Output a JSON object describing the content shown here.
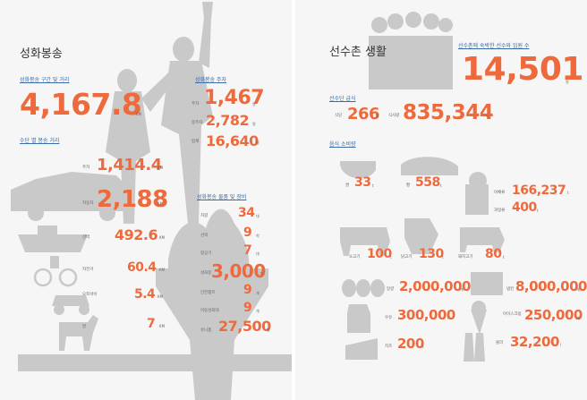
{
  "left": {
    "title": "성화봉송",
    "distance": {
      "heading": "성화봉송 구간 및 거리",
      "value": "4,167.8",
      "unit": "KM"
    },
    "runners": {
      "heading": "성화봉송 주자",
      "rows": [
        {
          "label": "주자",
          "value": "1,467",
          "unit": "명"
        },
        {
          "label": "봉주자",
          "value": "2,782",
          "unit": "명"
        },
        {
          "label": "합계",
          "value": "16,640",
          "unit": "명"
        }
      ]
    },
    "by_means": {
      "heading": "수단 별 봉송 거리",
      "rows": [
        {
          "label": "주자",
          "value": "1,414.4",
          "unit": "KM"
        },
        {
          "label": "자동차",
          "value": "2,188",
          "unit": "KM"
        },
        {
          "label": "선박",
          "value": "492.6",
          "unit": "KM"
        },
        {
          "label": "자전거",
          "value": "60.4",
          "unit": "KM"
        },
        {
          "label": "오토바이",
          "value": "5.4",
          "unit": "KM"
        },
        {
          "label": "말",
          "value": "7",
          "unit": "KM"
        }
      ]
    },
    "equipment": {
      "heading": "성화봉송 물품 및 장비",
      "rows": [
        {
          "label": "차량",
          "value": "34",
          "unit": "대"
        },
        {
          "label": "선박",
          "value": "9",
          "unit": "척"
        },
        {
          "label": "항공기",
          "value": "7",
          "unit": "대"
        },
        {
          "label": "성화봉",
          "value": "3,000",
          "unit": "개"
        },
        {
          "label": "안전램프",
          "value": "9",
          "unit": "개"
        },
        {
          "label": "이동성화대",
          "value": "9",
          "unit": "개"
        },
        {
          "label": "유니폼",
          "value": "27,500",
          "unit": "벌"
        }
      ]
    }
  },
  "right": {
    "title": "선수촌 생활",
    "lodging": {
      "heading": "선수촌에 숙박한 선수와 임원 수",
      "value": "14,501",
      "unit": "명"
    },
    "meals": {
      "heading": "선수단 급식",
      "rows": [
        {
          "label": "식당",
          "value": "266",
          "unit": "종"
        },
        {
          "label": "식사량",
          "value": "835,344",
          "unit": "식"
        }
      ]
    },
    "food": {
      "heading": "음식 소비량",
      "items": [
        {
          "label": "쌀",
          "value": "33",
          "unit": "t"
        },
        {
          "label": "빵",
          "value": "558",
          "unit": "t"
        },
        {
          "label": "야채류",
          "value": "166,237",
          "unit": "t"
        },
        {
          "label": "과일류",
          "value": "400",
          "unit": "t"
        },
        {
          "label": "소고기",
          "value": "100",
          "unit": "t"
        },
        {
          "label": "닭고기",
          "value": "130",
          "unit": "t"
        },
        {
          "label": "돼지고기",
          "value": "80",
          "unit": "t"
        },
        {
          "label": "달걀",
          "value": "2,000,000",
          "개": "",
          "unit": "개"
        },
        {
          "label": "냅킨",
          "value": "8,000,000",
          "unit": "개"
        },
        {
          "label": "우유",
          "value": "300,000",
          "unit": "l"
        },
        {
          "label": "아이스크림",
          "value": "250,000",
          "unit": "개"
        },
        {
          "label": "치즈",
          "value": "200",
          "unit": "t"
        },
        {
          "label": "콜라",
          "value": "32,200",
          "unit": "l"
        }
      ]
    }
  }
}
